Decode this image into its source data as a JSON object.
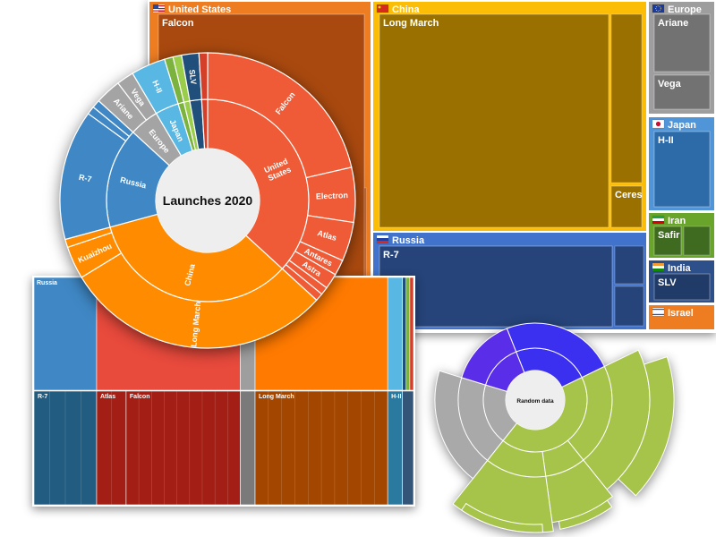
{
  "chart_data": [
    {
      "type": "treemap",
      "groups": [
        {
          "name": "United States",
          "color": "#ee7d22",
          "children": [
            {
              "name": "Falcon",
              "color": "#a9490f"
            }
          ]
        },
        {
          "name": "China",
          "color": "#fbbd05",
          "children": [
            {
              "name": "Long March",
              "color": "#9a7100"
            },
            {
              "name": "Ceres",
              "color": "#9a7100"
            }
          ]
        },
        {
          "name": "Russia",
          "color": "#4173cc",
          "children": [
            {
              "name": "R-7",
              "color": "#26447a"
            }
          ]
        },
        {
          "name": "Europe",
          "color": "#9e9e9e",
          "children": [
            {
              "name": "Ariane",
              "color": "#727272"
            },
            {
              "name": "Vega",
              "color": "#727272"
            }
          ]
        },
        {
          "name": "Japan",
          "color": "#4f95d8",
          "children": [
            {
              "name": "H-II",
              "color": "#2d6aa8"
            }
          ]
        },
        {
          "name": "Iran",
          "color": "#6aa52b",
          "children": [
            {
              "name": "Safir",
              "color": "#3f6b20"
            }
          ]
        },
        {
          "name": "India",
          "color": "#2d4f8a",
          "children": [
            {
              "name": "SLV",
              "color": "#213b69"
            }
          ]
        },
        {
          "name": "Israel",
          "color": "#ee7d22",
          "children": []
        }
      ]
    },
    {
      "type": "sunburst",
      "title": "Launches 2020",
      "inner": [
        {
          "name": "United States",
          "value": 39,
          "color": "#ef5b36"
        },
        {
          "name": "China",
          "value": 36,
          "color": "#ff8c00"
        },
        {
          "name": "Russia",
          "value": 17,
          "color": "#3f88c5"
        },
        {
          "name": "Europe",
          "value": 5,
          "color": "#a4a4a4"
        },
        {
          "name": "Japan",
          "value": 4,
          "color": "#58b7e3"
        },
        {
          "name": "",
          "value": 1,
          "color": "#7bb33e"
        },
        {
          "name": "",
          "value": 1,
          "color": "#9acd4a"
        },
        {
          "name": "",
          "value": 2,
          "color": "#1f4f7a"
        },
        {
          "name": "",
          "value": 1,
          "color": "#d43f2a"
        }
      ],
      "outer": [
        {
          "name": "Falcon",
          "value": 25,
          "parent": 0
        },
        {
          "name": "Electron",
          "value": 7,
          "parent": 0
        },
        {
          "name": "Atlas",
          "value": 5,
          "parent": 0
        },
        {
          "name": "Antares",
          "value": 2,
          "parent": 0
        },
        {
          "name": "Astra",
          "value": 2,
          "parent": 0
        },
        {
          "name": "",
          "value": 1,
          "parent": 0
        },
        {
          "name": "",
          "value": 1,
          "parent": 0
        },
        {
          "name": "Long March",
          "value": 33,
          "parent": 1
        },
        {
          "name": "Kuaizhou",
          "value": 4,
          "parent": 1
        },
        {
          "name": "",
          "value": 1,
          "parent": 1
        },
        {
          "name": "R-7",
          "value": 16,
          "parent": 2
        },
        {
          "name": "",
          "value": 1,
          "parent": 2
        },
        {
          "name": "",
          "value": 1,
          "parent": 2
        },
        {
          "name": "Ariane",
          "value": 3,
          "parent": 3
        },
        {
          "name": "Vega",
          "value": 2,
          "parent": 3
        },
        {
          "name": "H-II",
          "value": 4,
          "parent": 4
        },
        {
          "name": "",
          "value": 1,
          "parent": 5
        },
        {
          "name": "",
          "value": 1,
          "parent": 6
        },
        {
          "name": "SLV",
          "value": 2,
          "parent": 7
        },
        {
          "name": "",
          "value": 1,
          "parent": 8
        }
      ]
    },
    {
      "type": "icicle",
      "top": [
        {
          "name": "Russia",
          "value": 17,
          "color": "#3f88c5"
        },
        {
          "name": "",
          "value": 39,
          "color": "#e84a3c"
        },
        {
          "name": "",
          "value": 4,
          "color": "#9e9e9e"
        },
        {
          "name": "",
          "value": 36,
          "color": "#ff7a00"
        },
        {
          "name": "",
          "value": 4,
          "color": "#58b7e3"
        },
        {
          "name": "",
          "value": 1,
          "color": "#1f4f7a"
        },
        {
          "name": "",
          "value": 1,
          "color": "#7bb33e"
        },
        {
          "name": "",
          "value": 1,
          "color": "#d43f2a"
        }
      ],
      "bottom": [
        {
          "name": "R-7",
          "value": 17,
          "color": "#225c80"
        },
        {
          "name": "Atlas",
          "value": 8,
          "color": "#a31e14"
        },
        {
          "name": "Falcon",
          "value": 31,
          "color": "#a31e14"
        },
        {
          "name": "",
          "value": 4,
          "color": "#7a7a7a"
        },
        {
          "name": "Long March",
          "value": 36,
          "color": "#a34700"
        },
        {
          "name": "H-II",
          "value": 4,
          "color": "#2a7aa0"
        },
        {
          "name": "",
          "value": 3,
          "color": "#335577"
        }
      ]
    },
    {
      "type": "sunburst",
      "title": "Random data",
      "inner": [
        {
          "name": "",
          "value": 25,
          "color": "#3b2ff0"
        },
        {
          "name": "",
          "value": 45,
          "color": "#a6c34a"
        },
        {
          "name": "",
          "value": 20,
          "color": "#a9a9a9"
        },
        {
          "name": "",
          "value": 15,
          "color": "#5a2ee8"
        }
      ],
      "outer": [
        {
          "name": "",
          "value": 20,
          "parent": 0
        },
        {
          "name": "",
          "value": 25,
          "parent": 1
        },
        {
          "name": "",
          "value": 10,
          "parent": 1
        },
        {
          "name": "",
          "value": 15,
          "parent": 1
        },
        {
          "name": "",
          "value": 20,
          "parent": 2
        },
        {
          "name": "",
          "value": 15,
          "parent": 3
        }
      ]
    }
  ]
}
